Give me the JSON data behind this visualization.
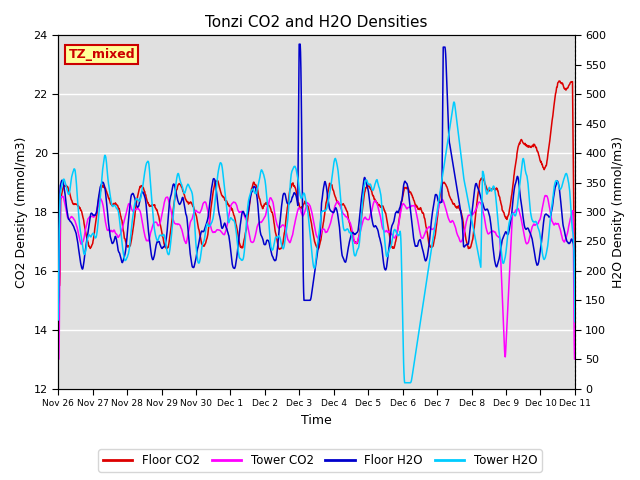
{
  "title": "Tonzi CO2 and H2O Densities",
  "xlabel": "Time",
  "ylabel_left": "CO2 Density (mmol/m3)",
  "ylabel_right": "H2O Density (mmol/m3)",
  "ylim_left": [
    12,
    24
  ],
  "ylim_right": [
    0,
    600
  ],
  "annotation_text": "TZ_mixed",
  "annotation_color": "#cc0000",
  "annotation_bg": "#ffff99",
  "bg_color": "#e0e0e0",
  "legend_entries": [
    "Floor CO2",
    "Tower CO2",
    "Floor H2O",
    "Tower H2O"
  ],
  "line_colors": [
    "#dd0000",
    "#ff00ff",
    "#0000cc",
    "#00ccff"
  ],
  "xtick_labels": [
    "Nov 26",
    "Nov 27",
    "Nov 28",
    "Nov 29",
    "Nov 30",
    "Dec 1",
    "Dec 2",
    "Dec 3",
    "Dec 4",
    "Dec 5",
    "Dec 6",
    "Dec 7",
    "Dec 8",
    "Dec 9",
    "Dec 10",
    "Dec 11"
  ],
  "yticks_left": [
    12,
    14,
    16,
    18,
    20,
    22,
    24
  ],
  "yticks_right": [
    0,
    50,
    100,
    150,
    200,
    250,
    300,
    350,
    400,
    450,
    500,
    550,
    600
  ],
  "grid_color": "white"
}
